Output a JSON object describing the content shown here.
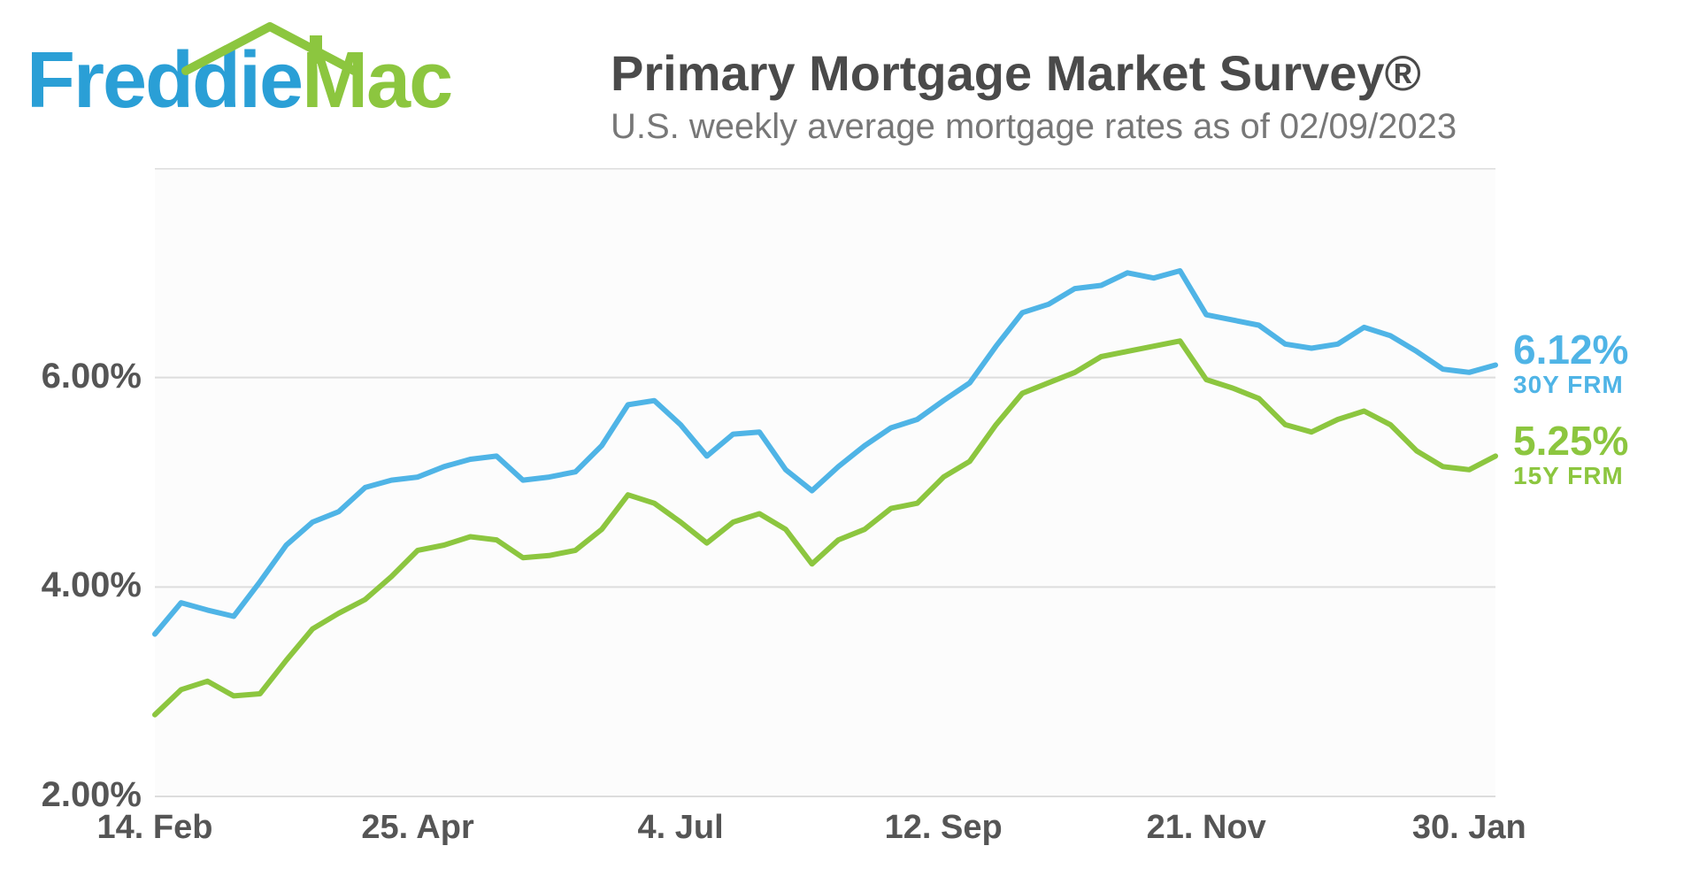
{
  "logo": {
    "freddie": "Freddie",
    "mac": "Mac",
    "freddie_color": "#2a9fd6",
    "mac_color": "#8cc63f",
    "roof_color": "#8cc63f"
  },
  "title": "Primary Mortgage Market Survey®",
  "subtitle": "U.S. weekly average mortgage rates as of 02/09/2023",
  "title_color": "#4a4a4a",
  "subtitle_color": "#777777",
  "chart": {
    "type": "line",
    "background_color": "#fcfcfc",
    "grid_color": "#dddddd",
    "axis_label_color": "#555555",
    "axis_label_fontsize": 40,
    "line_width": 6,
    "ylim": [
      2.0,
      8.0
    ],
    "yticks": [
      2.0,
      4.0,
      6.0
    ],
    "ytick_labels": [
      "2.00%",
      "4.00%",
      "6.00%"
    ],
    "x_count": 52,
    "xtick_positions": [
      0,
      10,
      20,
      30,
      40,
      50
    ],
    "xtick_labels": [
      "14. Feb",
      "25. Apr",
      "4. Jul",
      "12. Sep",
      "21. Nov",
      "30. Jan"
    ],
    "series": [
      {
        "name": "30Y FRM",
        "color": "#4fb4e6",
        "end_value_label": "6.12%",
        "end_series_label": "30Y FRM",
        "values": [
          3.55,
          3.85,
          3.78,
          3.72,
          4.05,
          4.4,
          4.62,
          4.72,
          4.95,
          5.02,
          5.05,
          5.15,
          5.22,
          5.25,
          5.02,
          5.05,
          5.1,
          5.35,
          5.74,
          5.78,
          5.55,
          5.25,
          5.46,
          5.48,
          5.12,
          4.92,
          5.15,
          5.35,
          5.52,
          5.6,
          5.78,
          5.95,
          6.3,
          6.62,
          6.7,
          6.85,
          6.88,
          7.0,
          6.95,
          7.02,
          6.6,
          6.55,
          6.5,
          6.32,
          6.28,
          6.32,
          6.48,
          6.4,
          6.25,
          6.08,
          6.05,
          6.12
        ]
      },
      {
        "name": "15Y FRM",
        "color": "#8cc63f",
        "end_value_label": "5.25%",
        "end_series_label": "15Y FRM",
        "values": [
          2.78,
          3.02,
          3.1,
          2.96,
          2.98,
          3.3,
          3.6,
          3.75,
          3.88,
          4.1,
          4.35,
          4.4,
          4.48,
          4.45,
          4.28,
          4.3,
          4.35,
          4.55,
          4.88,
          4.8,
          4.62,
          4.42,
          4.62,
          4.7,
          4.55,
          4.22,
          4.45,
          4.55,
          4.75,
          4.8,
          5.05,
          5.2,
          5.55,
          5.85,
          5.95,
          6.05,
          6.2,
          6.25,
          6.3,
          6.35,
          5.98,
          5.9,
          5.8,
          5.55,
          5.48,
          5.6,
          5.68,
          5.55,
          5.3,
          5.15,
          5.12,
          5.25
        ]
      }
    ]
  }
}
